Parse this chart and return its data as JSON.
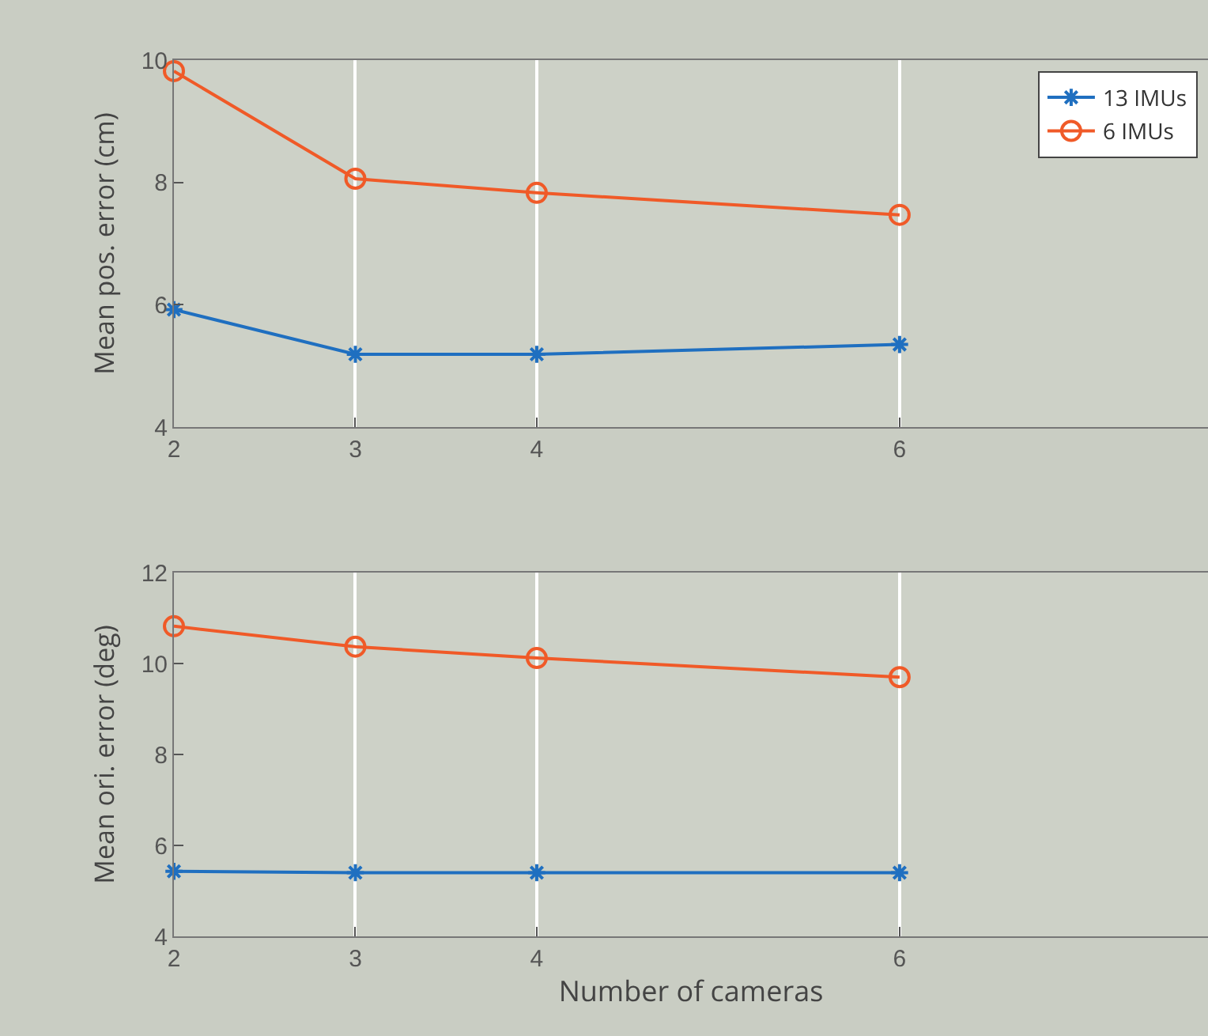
{
  "chart_data": [
    {
      "type": "line",
      "ylabel": "Mean pos. error (cm)",
      "x": [
        2,
        3,
        4,
        6
      ],
      "xlim": [
        2,
        7.7
      ],
      "xticks": [
        2,
        3,
        4,
        6
      ],
      "ylim": [
        4,
        10
      ],
      "yticks": [
        4,
        6,
        8,
        10
      ],
      "grid": "x",
      "legend": "top right",
      "series": [
        {
          "name": "13 IMUs",
          "color": "#1f6fc0",
          "marker": "cross",
          "values": [
            5.92,
            5.19,
            5.19,
            5.35
          ]
        },
        {
          "name": "6 IMUs",
          "color": "#f05a28",
          "marker": "circle",
          "values": [
            9.82,
            8.06,
            7.83,
            7.47
          ]
        }
      ]
    },
    {
      "type": "line",
      "ylabel": "Mean ori. error (deg)",
      "xlabel": "Number of cameras",
      "x": [
        2,
        3,
        4,
        6
      ],
      "xlim": [
        2,
        7.7
      ],
      "xticks": [
        2,
        3,
        4,
        6
      ],
      "ylim": [
        4,
        12
      ],
      "yticks": [
        4,
        6,
        8,
        10,
        12
      ],
      "grid": "x",
      "series": [
        {
          "color": "#1f6fc0",
          "marker": "cross",
          "values": [
            5.43,
            5.4,
            5.4,
            5.4
          ]
        },
        {
          "color": "#f05a28",
          "marker": "circle",
          "values": [
            10.82,
            10.37,
            10.12,
            9.7
          ]
        }
      ]
    }
  ]
}
